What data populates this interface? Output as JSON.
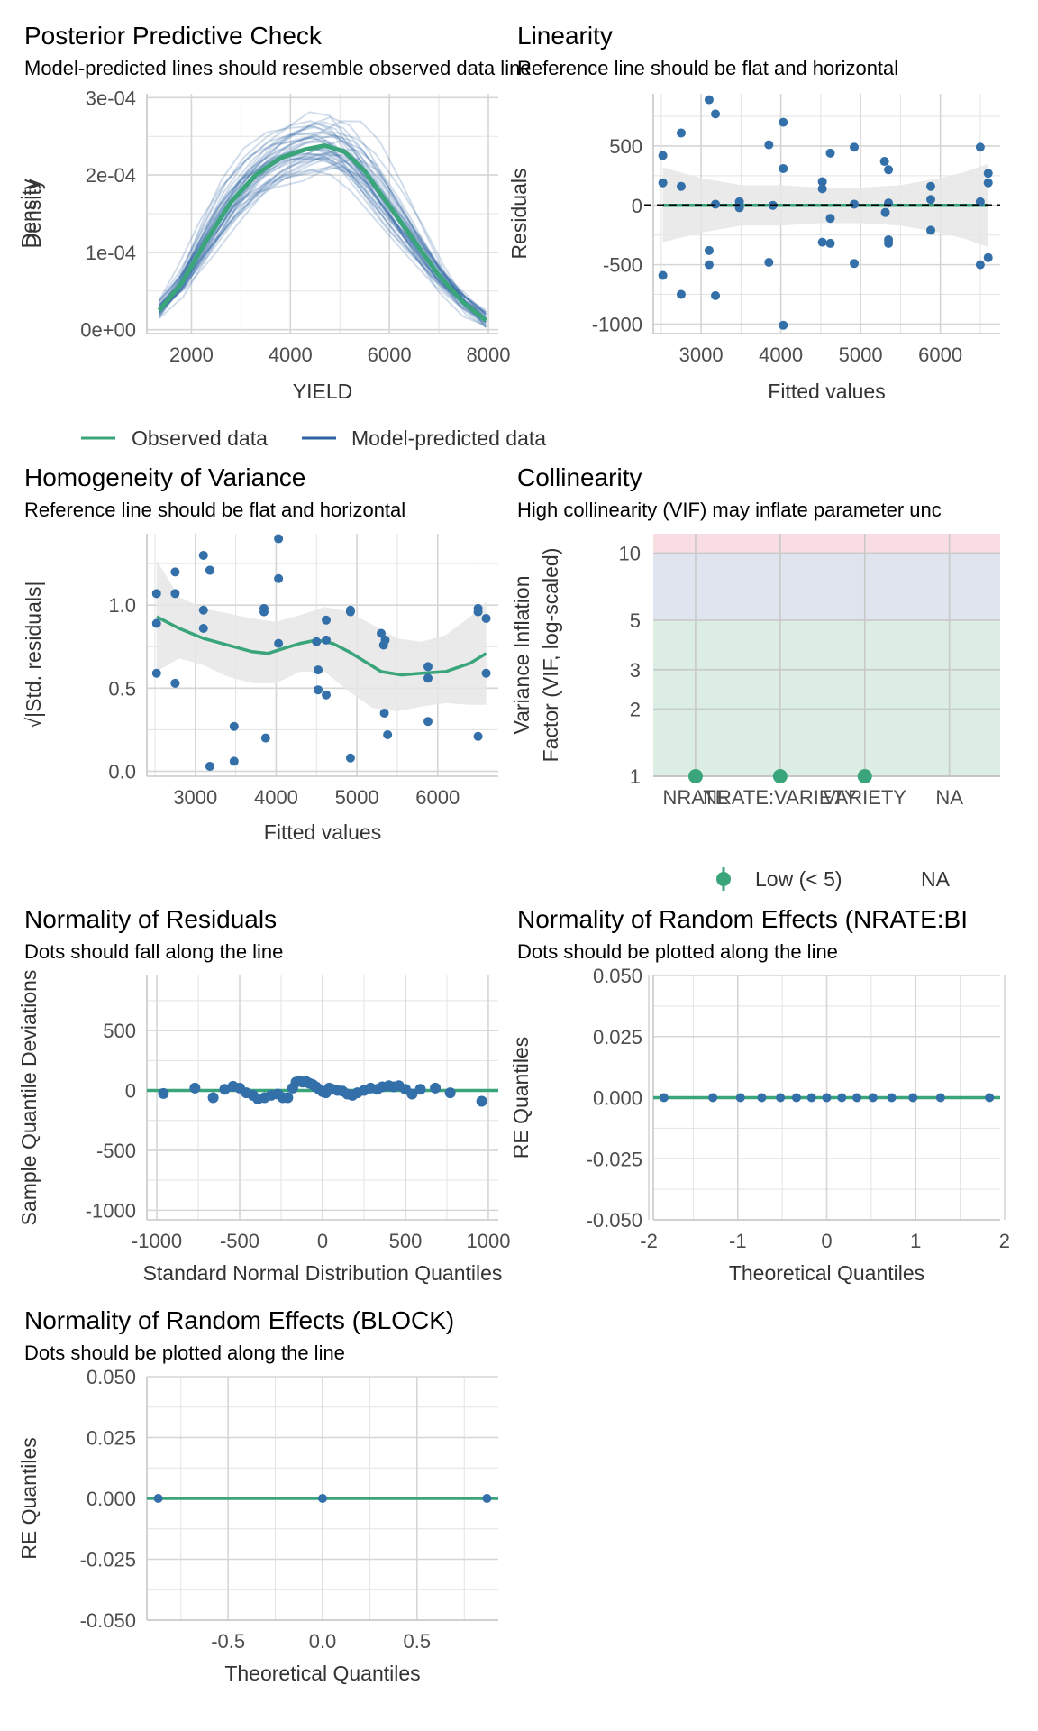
{
  "colors": {
    "observed": "#3aa57a",
    "predicted": "#2d63a5",
    "point": "#336fa8",
    "smooth": "#3aa57a",
    "band": "#e6e6e6",
    "grid": "#e3e3e3",
    "zone_low": "#dceee4",
    "zone_moderate": "#dfe4ef",
    "zone_high": "#f8dde3"
  },
  "chart_data": [
    {
      "id": "ppc",
      "type": "line",
      "title": "Posterior Predictive Check",
      "subtitle": "Model-predicted lines should resemble observed data line",
      "xlabel": "YIELD",
      "ylabel": "Density",
      "xlim": [
        1100,
        8200
      ],
      "ylim": [
        -5e-06,
        0.000305
      ],
      "x_ticks": [
        2000,
        4000,
        6000,
        8000
      ],
      "x_tick_labels": [
        "2000",
        "4000",
        "6000",
        "8000"
      ],
      "y_ticks": [
        0,
        0.0001,
        0.0002,
        0.0003
      ],
      "y_tick_labels": [
        "0e+00",
        "1e-04",
        "2e-04",
        "3e-04"
      ],
      "observed": {
        "x": [
          1350,
          1800,
          2300,
          2800,
          3300,
          3800,
          4300,
          4700,
          5100,
          5500,
          6000,
          6500,
          7000,
          7500,
          7950
        ],
        "y": [
          2.5e-05,
          6e-05,
          0.000115,
          0.000165,
          0.0002,
          0.000222,
          0.000233,
          0.000238,
          0.00023,
          0.000205,
          0.00016,
          0.000115,
          7e-05,
          3.5e-05,
          1.2e-05
        ]
      },
      "predicted_count": 40,
      "legend": [
        "Observed data",
        "Model-predicted data"
      ]
    },
    {
      "id": "linearity",
      "type": "scatter",
      "title": "Linearity",
      "subtitle": "Reference line should be flat and horizontal",
      "xlabel": "Fitted values",
      "ylabel": "Residuals",
      "xlim": [
        2400,
        6750
      ],
      "ylim": [
        -1080,
        940
      ],
      "x_ticks": [
        3000,
        4000,
        5000,
        6000
      ],
      "x_tick_labels": [
        "3000",
        "4000",
        "5000",
        "6000"
      ],
      "y_ticks": [
        -1000,
        -500,
        0,
        500
      ],
      "y_tick_labels": [
        "-1000",
        "-500",
        "0",
        "500"
      ],
      "points": [
        [
          2520,
          420
        ],
        [
          2520,
          190
        ],
        [
          2520,
          -590
        ],
        [
          2750,
          610
        ],
        [
          2750,
          160
        ],
        [
          2750,
          -750
        ],
        [
          3100,
          890
        ],
        [
          3100,
          -380
        ],
        [
          3100,
          -500
        ],
        [
          3180,
          770
        ],
        [
          3180,
          10
        ],
        [
          3180,
          -760
        ],
        [
          3480,
          30
        ],
        [
          3480,
          -20
        ],
        [
          3850,
          510
        ],
        [
          3850,
          -480
        ],
        [
          3900,
          0
        ],
        [
          4030,
          700
        ],
        [
          4030,
          310
        ],
        [
          4030,
          -1010
        ],
        [
          4520,
          200
        ],
        [
          4520,
          140
        ],
        [
          4520,
          -310
        ],
        [
          4620,
          -320
        ],
        [
          4620,
          440
        ],
        [
          4620,
          -110
        ],
        [
          4920,
          490
        ],
        [
          4920,
          -490
        ],
        [
          4920,
          10
        ],
        [
          5300,
          370
        ],
        [
          5350,
          300
        ],
        [
          5350,
          20
        ],
        [
          5350,
          -290
        ],
        [
          5350,
          -320
        ],
        [
          5310,
          -60
        ],
        [
          5880,
          160
        ],
        [
          5880,
          50
        ],
        [
          5880,
          -210
        ],
        [
          6500,
          490
        ],
        [
          6500,
          30
        ],
        [
          6500,
          -500
        ],
        [
          6600,
          270
        ],
        [
          6600,
          190
        ],
        [
          6600,
          -440
        ]
      ],
      "smooth": {
        "x": [
          2520,
          3000,
          3500,
          4000,
          4500,
          5000,
          5500,
          6000,
          6600
        ],
        "y": [
          0,
          0,
          0,
          0,
          0,
          0,
          0,
          0,
          0
        ]
      },
      "band": {
        "x": [
          2520,
          3000,
          3500,
          4000,
          4500,
          5000,
          5500,
          6000,
          6300,
          6600
        ],
        "upper": [
          320,
          230,
          170,
          170,
          150,
          150,
          170,
          230,
          280,
          350
        ],
        "lower": [
          -310,
          -230,
          -170,
          -170,
          -150,
          -150,
          -170,
          -230,
          -280,
          -350
        ]
      },
      "reference_y": 0
    },
    {
      "id": "homogeneity",
      "type": "scatter",
      "title": "Homogeneity of Variance",
      "subtitle": "Reference line should be flat and horizontal",
      "xlabel": "Fitted values",
      "ylabel": "√|Std. residuals|",
      "xlim": [
        2400,
        6750
      ],
      "ylim": [
        -0.03,
        1.43
      ],
      "x_ticks": [
        3000,
        4000,
        5000,
        6000
      ],
      "x_tick_labels": [
        "3000",
        "4000",
        "5000",
        "6000"
      ],
      "y_ticks": [
        0,
        0.5,
        1
      ],
      "y_tick_labels": [
        "0.0",
        "0.5",
        "1.0"
      ],
      "points": [
        [
          2520,
          1.07
        ],
        [
          2520,
          0.89
        ],
        [
          2520,
          0.59
        ],
        [
          2750,
          1.2
        ],
        [
          2750,
          1.07
        ],
        [
          2750,
          0.53
        ],
        [
          3100,
          1.3
        ],
        [
          3100,
          0.97
        ],
        [
          3100,
          0.86
        ],
        [
          3180,
          1.21
        ],
        [
          3180,
          1.21
        ],
        [
          3180,
          0.03
        ],
        [
          3480,
          0.27
        ],
        [
          3480,
          0.06
        ],
        [
          3850,
          0.98
        ],
        [
          3850,
          0.96
        ],
        [
          3870,
          0.2
        ],
        [
          4030,
          1.4
        ],
        [
          4030,
          1.16
        ],
        [
          4030,
          0.77
        ],
        [
          4500,
          0.78
        ],
        [
          4520,
          0.61
        ],
        [
          4520,
          0.49
        ],
        [
          4620,
          0.91
        ],
        [
          4620,
          0.79
        ],
        [
          4620,
          0.46
        ],
        [
          4920,
          0.97
        ],
        [
          4920,
          0.96
        ],
        [
          4920,
          0.08
        ],
        [
          5300,
          0.83
        ],
        [
          5330,
          0.76
        ],
        [
          5350,
          0.79
        ],
        [
          5340,
          0.35
        ],
        [
          5380,
          0.22
        ],
        [
          5880,
          0.63
        ],
        [
          5880,
          0.56
        ],
        [
          5880,
          0.3
        ],
        [
          6500,
          0.98
        ],
        [
          6500,
          0.96
        ],
        [
          6500,
          0.21
        ],
        [
          6600,
          0.92
        ],
        [
          6600,
          0.59
        ]
      ],
      "smooth": {
        "x": [
          2520,
          2800,
          3100,
          3400,
          3700,
          3900,
          4100,
          4300,
          4500,
          4700,
          4900,
          5100,
          5300,
          5550,
          5800,
          6100,
          6400,
          6600
        ],
        "y": [
          0.93,
          0.86,
          0.8,
          0.76,
          0.72,
          0.71,
          0.74,
          0.77,
          0.79,
          0.77,
          0.72,
          0.66,
          0.6,
          0.58,
          0.59,
          0.6,
          0.65,
          0.71
        ]
      },
      "band": {
        "x": [
          2520,
          2800,
          3100,
          3400,
          3700,
          4000,
          4300,
          4600,
          4900,
          5200,
          5500,
          5800,
          6100,
          6400,
          6600
        ],
        "upper": [
          1.27,
          1.05,
          0.98,
          0.95,
          0.92,
          0.9,
          0.94,
          0.99,
          0.96,
          0.88,
          0.8,
          0.78,
          0.82,
          0.93,
          1.02
        ],
        "lower": [
          0.6,
          0.68,
          0.64,
          0.57,
          0.53,
          0.53,
          0.6,
          0.6,
          0.48,
          0.38,
          0.36,
          0.39,
          0.41,
          0.4,
          0.4
        ]
      }
    },
    {
      "id": "collinearity",
      "type": "scatter",
      "title": "Collinearity",
      "subtitle": "High collinearity (VIF) may inflate parameter unc",
      "xlabel": "",
      "ylabel": "Variance Inflation Factor (VIF, log-scaled)",
      "ylabel_lines": [
        "Variance Inflation",
        "Factor (VIF, log-scaled)"
      ],
      "y_scale": "log",
      "xlim": [
        0.5,
        4.6
      ],
      "ylim": [
        1,
        12.2
      ],
      "zones": {
        "low": [
          1,
          5
        ],
        "moderate": [
          5,
          10
        ],
        "high": [
          10,
          12.2
        ]
      },
      "categories": [
        "NRATE",
        "NRATE:VARIETY",
        "VARIETY",
        "NA"
      ],
      "y_ticks": [
        1,
        2,
        3,
        5,
        10
      ],
      "y_tick_labels": [
        "1",
        "2",
        "3",
        "5",
        "10"
      ],
      "points": [
        [
          1,
          1
        ],
        [
          2,
          1
        ],
        [
          3,
          1
        ]
      ],
      "legend": [
        "Low (< 5)",
        "NA"
      ]
    },
    {
      "id": "normality",
      "type": "scatter",
      "title": "Normality of Residuals",
      "subtitle": "Dots should fall along the line",
      "xlabel": "Standard Normal Distribution Quantiles",
      "ylabel": "Sample Quantile Deviations",
      "xlim": [
        -1060,
        1060
      ],
      "ylim": [
        -1080,
        960
      ],
      "x_ticks": [
        -1000,
        -500,
        0,
        500,
        1000
      ],
      "x_tick_labels": [
        "-1000",
        "-500",
        "0",
        "500",
        "1000"
      ],
      "y_ticks": [
        -1000,
        -500,
        0,
        500
      ],
      "y_tick_labels": [
        "-1000",
        "-500",
        "0",
        "500"
      ],
      "points": [
        [
          -960,
          -25
        ],
        [
          -770,
          20
        ],
        [
          -660,
          -60
        ],
        [
          -590,
          10
        ],
        [
          -540,
          35
        ],
        [
          -500,
          20
        ],
        [
          -460,
          -20
        ],
        [
          -420,
          -40
        ],
        [
          -390,
          -70
        ],
        [
          -350,
          -60
        ],
        [
          -310,
          -40
        ],
        [
          -270,
          -30
        ],
        [
          -240,
          -60
        ],
        [
          -210,
          -60
        ],
        [
          -180,
          20
        ],
        [
          -160,
          70
        ],
        [
          -140,
          80
        ],
        [
          -120,
          70
        ],
        [
          -100,
          75
        ],
        [
          -80,
          60
        ],
        [
          -60,
          50
        ],
        [
          -40,
          30
        ],
        [
          -20,
          10
        ],
        [
          0,
          -10
        ],
        [
          20,
          -20
        ],
        [
          40,
          20
        ],
        [
          60,
          10
        ],
        [
          90,
          0
        ],
        [
          120,
          -5
        ],
        [
          150,
          -30
        ],
        [
          180,
          -40
        ],
        [
          210,
          -20
        ],
        [
          250,
          0
        ],
        [
          290,
          20
        ],
        [
          330,
          10
        ],
        [
          360,
          30
        ],
        [
          400,
          40
        ],
        [
          430,
          30
        ],
        [
          460,
          40
        ],
        [
          500,
          10
        ],
        [
          540,
          -30
        ],
        [
          590,
          10
        ],
        [
          680,
          20
        ],
        [
          770,
          -20
        ],
        [
          960,
          -90
        ]
      ],
      "reference_y": 0
    },
    {
      "id": "re_nrate_block",
      "type": "scatter",
      "title": "Normality of Random Effects (NRATE:BI",
      "subtitle": "Dots should be plotted along the line",
      "xlabel": "Theoretical Quantiles",
      "ylabel": "RE Quantiles",
      "xlim": [
        -1.95,
        1.95
      ],
      "ylim": [
        -0.05,
        0.05
      ],
      "x_ticks": [
        -2,
        -1,
        0,
        1,
        2
      ],
      "x_tick_labels": [
        "-2",
        "-1",
        "0",
        "1",
        "2"
      ],
      "y_ticks": [
        -0.05,
        -0.025,
        0,
        0.025,
        0.05
      ],
      "y_tick_labels": [
        "-0.050",
        "-0.025",
        "0.000",
        "0.025",
        "0.050"
      ],
      "points": [
        [
          -1.83,
          0
        ],
        [
          -1.28,
          0
        ],
        [
          -0.97,
          0
        ],
        [
          -0.73,
          0
        ],
        [
          -0.52,
          0
        ],
        [
          -0.34,
          0
        ],
        [
          -0.17,
          0
        ],
        [
          0,
          0
        ],
        [
          0.17,
          0
        ],
        [
          0.34,
          0
        ],
        [
          0.52,
          0
        ],
        [
          0.73,
          0
        ],
        [
          0.97,
          0
        ],
        [
          1.28,
          0
        ],
        [
          1.83,
          0
        ]
      ],
      "reference_y": 0
    },
    {
      "id": "re_block",
      "type": "scatter",
      "title": "Normality of Random Effects (BLOCK)",
      "subtitle": "Dots should be plotted along the line",
      "xlabel": "Theoretical Quantiles",
      "ylabel": "RE Quantiles",
      "xlim": [
        -0.93,
        0.93
      ],
      "ylim": [
        -0.05,
        0.05
      ],
      "x_ticks": [
        -0.5,
        0,
        0.5
      ],
      "x_tick_labels": [
        "-0.5",
        "0.0",
        "0.5"
      ],
      "y_ticks": [
        -0.05,
        -0.025,
        0,
        0.025,
        0.05
      ],
      "y_tick_labels": [
        "-0.050",
        "-0.025",
        "0.000",
        "0.025",
        "0.050"
      ],
      "points": [
        [
          -0.87,
          0
        ],
        [
          0,
          0
        ],
        [
          0.87,
          0
        ]
      ],
      "reference_y": 0
    }
  ]
}
